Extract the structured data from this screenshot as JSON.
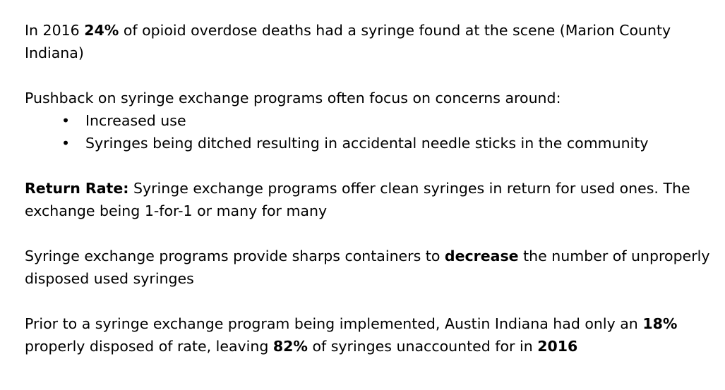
{
  "p1": {
    "t1": "In 2016 ",
    "b1": "24%",
    "t2": " of opioid overdose deaths had a syringe found at the scene (Marion County Indiana)"
  },
  "p2": {
    "intro": "Pushback on syringe exchange programs often focus on concerns around:",
    "bullets": [
      "Increased use",
      "Syringes being ditched resulting in accidental needle sticks in the community"
    ],
    "bullet_glyph": "•"
  },
  "p3": {
    "b1": "Return Rate:",
    "t1": " Syringe exchange programs offer clean syringes in return for used ones. The exchange being 1-for-1 or many for many"
  },
  "p4": {
    "t1": "Syringe exchange programs provide sharps containers to ",
    "b1": "decrease",
    "t2": " the number of unproperly disposed used syringes"
  },
  "p5": {
    "t1": "Prior to a syringe exchange program being implemented, Austin Indiana had only an ",
    "b1": "18%",
    "t2": " properly disposed of rate, leaving ",
    "b2": "82%",
    "t3": " of syringes unaccounted for in ",
    "b3": "2016"
  }
}
